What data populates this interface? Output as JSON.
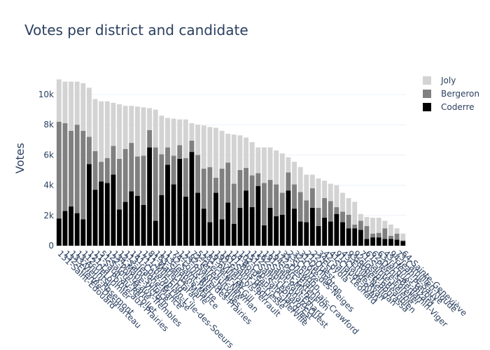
{
  "chart_data": {
    "type": "stacked_bar",
    "title": "Votes per district and candidate",
    "y_label": "Votes",
    "categories": [
      "131-Saint-Édouard",
      "132-Étienne-Desmarteau",
      "133-Vieux-Rosemont",
      "13-Ahuntsic",
      "112-DeLorimier",
      "121-La Pointe-aux-Prairies",
      "11-Sault-au-Récollet",
      "51-Sainte-Marie",
      "122-Pointe-aux-Trembles",
      "134-Marie-Victorin",
      "12-Saint-Sulpice",
      "113-Jeanne-Mance",
      "141-Côte-de-Liesse",
      "171-Champlain-L'Île-des-Soeurs",
      "111-Mile-End",
      "81-Marie-Clarac",
      "183-Sainte-Marie",
      "113-Jeanne-Mance",
      "132-Saint-Pierre",
      "74-Louis-Riel",
      "123-Rivière-des-Prairies",
      "182-Saint-Jacques",
      "72-Tétreaultville",
      "52-Cecil-P.-Newman",
      "181-Peter-McGill",
      "193-Villeray",
      "192-François-Perrault",
      "161-Saint-Henri",
      "101-Bois-de-Liesse",
      "14-Bordeaux-Cartierville",
      "102-Cap-Saint-Jacques",
      "151-Saint-Léonard-Est",
      "152-Saint-Léonard-Ouest",
      "162-Saint-Paul-Émard",
      "191-Saint-Michel",
      "194-Parc-Extension",
      "172-Desmarchais-Crawford",
      "33-Snowdon",
      "23-Centre",
      "32-Côte-des-Neiges",
      "31-Darlington",
      "21-Ouest",
      "22-Est",
      "34-Loyola",
      "42-Saint-Léonard",
      "41-Claude-Ryan",
      "91-Claude-Ryan",
      "43-Émile-Nelligan",
      "93-Robert-Bourassa",
      "92-Joseph-Beaubien",
      "71-Sainte-Hélène",
      "61-Pierre-Foretier",
      "62-Denis-Benjamin-Viger",
      "63-Jacques-Bizard",
      "43-Henri-Prévost",
      "94-Jeanne-Sauvé",
      "73-Camillien-Houde",
      "64-Sainte-Geneviève"
    ],
    "series": [
      {
        "name": "Coderre",
        "color": "#000000",
        "values": [
          1800,
          2300,
          2600,
          2150,
          1750,
          5400,
          3700,
          4250,
          4150,
          4700,
          2400,
          2900,
          3600,
          3300,
          2700,
          6500,
          1650,
          3350,
          5350,
          4050,
          5750,
          3250,
          6200,
          3500,
          2450,
          1550,
          3500,
          1750,
          2850,
          1450,
          2500,
          3650,
          2550,
          3950,
          1350,
          2500,
          1950,
          2050,
          3650,
          2450,
          1600,
          1550,
          2500,
          1300,
          1850,
          1600,
          2100,
          1550,
          1150,
          1150,
          1050,
          450,
          550,
          550,
          450,
          450,
          400,
          300
        ]
      },
      {
        "name": "Bergeron",
        "color": "#808080",
        "values": [
          6400,
          5800,
          5000,
          5850,
          5850,
          1800,
          2550,
          1300,
          1650,
          1900,
          3350,
          3500,
          3200,
          2600,
          3250,
          1150,
          4850,
          2700,
          1150,
          1900,
          900,
          2550,
          750,
          2500,
          2650,
          3650,
          1000,
          3350,
          2650,
          2650,
          2500,
          1500,
          2100,
          850,
          2800,
          1850,
          2100,
          1450,
          1200,
          1600,
          1950,
          1450,
          1300,
          1200,
          1300,
          1350,
          450,
          700,
          900,
          250,
          600,
          850,
          250,
          300,
          700,
          200,
          400,
          50
        ]
      },
      {
        "name": "Joly",
        "color": "#d3d3d3",
        "values": [
          2800,
          2750,
          3250,
          2850,
          3150,
          3250,
          3450,
          4000,
          3750,
          2850,
          3600,
          2850,
          2450,
          3300,
          3200,
          1450,
          2500,
          2550,
          1950,
          2450,
          1700,
          2550,
          1150,
          2000,
          2850,
          2650,
          3300,
          2500,
          1900,
          3250,
          2300,
          2000,
          2200,
          1700,
          2350,
          2150,
          2250,
          2600,
          1000,
          1500,
          1650,
          1700,
          900,
          1950,
          1150,
          1150,
          1450,
          1250,
          1100,
          1500,
          450,
          600,
          1050,
          1000,
          500,
          750,
          350,
          450
        ]
      }
    ],
    "ylim": [
      0,
      11620
    ],
    "yticks": [
      0,
      {
        "value": 2000,
        "label": "2k"
      },
      {
        "value": 4000,
        "label": "4k"
      },
      {
        "value": 6000,
        "label": "6k"
      },
      {
        "value": 8000,
        "label": "8k"
      },
      {
        "value": 10000,
        "label": "10k"
      }
    ],
    "grid": true,
    "legend": "top-right"
  }
}
